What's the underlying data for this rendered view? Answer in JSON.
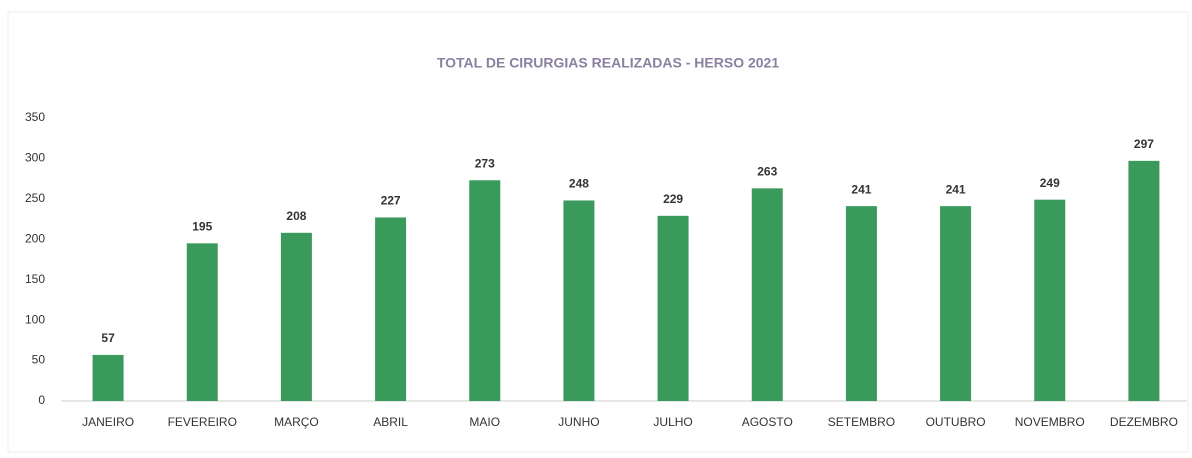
{
  "chart_data": {
    "type": "bar",
    "title": "TOTAL DE CIRURGIAS REALIZADAS - HERSO 2021",
    "categories": [
      "JANEIRO",
      "FEVEREIRO",
      "MARÇO",
      "ABRIL",
      "MAIO",
      "JUNHO",
      "JULHO",
      "AGOSTO",
      "SETEMBRO",
      "OUTUBRO",
      "NOVEMBRO",
      "DEZEMBRO"
    ],
    "values": [
      57,
      195,
      208,
      227,
      273,
      248,
      229,
      263,
      241,
      241,
      249,
      297
    ],
    "color": "#3a9a5c",
    "ylim": [
      0,
      350
    ],
    "yticks": [
      0,
      50,
      100,
      150,
      200,
      250,
      300,
      350
    ],
    "grid": false
  }
}
